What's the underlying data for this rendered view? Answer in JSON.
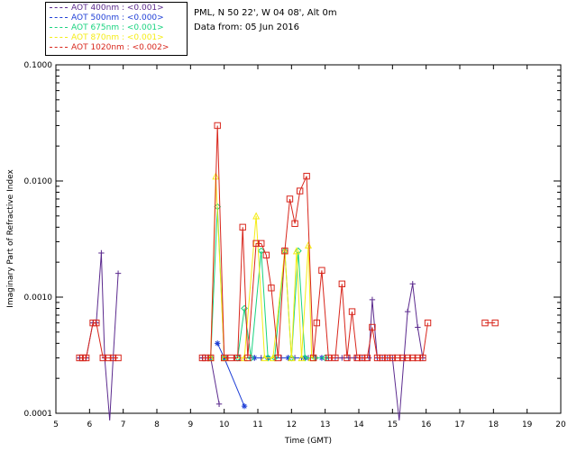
{
  "legend": [
    {
      "label": "AOT  400nm : <0.001>",
      "color": "#5b2a8e"
    },
    {
      "label": "AOT  500nm : <0.000>",
      "color": "#1f3fd6"
    },
    {
      "label": "AOT  675nm : <0.001>",
      "color": "#19d37f"
    },
    {
      "label": "AOT  870nm : <0.001>",
      "color": "#f5ec16"
    },
    {
      "label": "AOT 1020nm : <0.002>",
      "color": "#d8261c"
    }
  ],
  "info": {
    "site": "PML, N 50 22', W 04 08', Alt 0m",
    "date": "Data from: 05 Jun 2016"
  },
  "chart_data": {
    "type": "line",
    "ylabel": "Imaginary Part of Refractive Index",
    "xlabel": "Time (GMT)",
    "xlim": [
      5,
      20
    ],
    "ylim": [
      0.0001,
      0.1
    ],
    "yscale": "log",
    "xticks": [
      5,
      6,
      7,
      8,
      9,
      10,
      11,
      12,
      13,
      14,
      15,
      16,
      17,
      18,
      19,
      20
    ],
    "yticks": [
      {
        "value": 0.0001,
        "label": "0.0001"
      },
      {
        "value": 0.001,
        "label": "0.0010"
      },
      {
        "value": 0.01,
        "label": "0.0100"
      },
      {
        "value": 0.1,
        "label": "0.1000"
      }
    ],
    "series": [
      {
        "name": "AOT 400nm",
        "color": "#5b2a8e",
        "marker": "plus",
        "points": [
          [
            5.7,
            0.0003
          ],
          [
            5.8,
            0.0003
          ],
          [
            5.9,
            0.0003
          ],
          [
            6.1,
            0.0006
          ],
          [
            6.2,
            0.0006
          ],
          [
            6.35,
            0.0024
          ],
          [
            6.45,
            0.0003
          ],
          [
            6.6,
            8e-05
          ],
          [
            6.7,
            0.0003
          ],
          [
            6.85,
            0.0016
          ],
          [
            null,
            null
          ],
          [
            9.35,
            0.0003
          ],
          [
            9.45,
            0.0003
          ],
          [
            9.6,
            0.0003
          ],
          [
            9.85,
            0.00012
          ],
          [
            null,
            null
          ],
          [
            10.0,
            0.0003
          ],
          [
            10.1,
            0.0003
          ],
          [
            10.3,
            0.0003
          ],
          [
            10.45,
            0.0003
          ],
          [
            10.6,
            0.0003
          ],
          [
            10.9,
            0.0003
          ],
          [
            11.1,
            0.0003
          ],
          [
            11.3,
            0.0003
          ],
          [
            11.5,
            0.0003
          ],
          [
            11.7,
            0.0003
          ],
          [
            11.9,
            0.0003
          ],
          [
            12.1,
            0.0003
          ],
          [
            12.3,
            0.0003
          ],
          [
            12.5,
            0.0003
          ],
          [
            12.7,
            0.0003
          ],
          [
            12.9,
            0.0003
          ],
          [
            13.1,
            0.0003
          ],
          [
            13.3,
            0.0003
          ],
          [
            13.5,
            0.0003
          ],
          [
            13.7,
            0.0003
          ],
          [
            13.9,
            0.0003
          ],
          [
            14.1,
            0.0003
          ],
          [
            14.3,
            0.0003
          ],
          [
            14.4,
            0.00095
          ],
          [
            14.55,
            0.0003
          ],
          [
            14.7,
            0.0003
          ],
          [
            14.85,
            0.0003
          ],
          [
            15.0,
            0.0003
          ],
          [
            15.2,
            8e-05
          ],
          [
            15.45,
            0.00075
          ],
          [
            15.6,
            0.0013
          ],
          [
            15.75,
            0.00055
          ],
          [
            15.9,
            0.0003
          ]
        ]
      },
      {
        "name": "AOT 500nm",
        "color": "#1f3fd6",
        "marker": "star",
        "points": [
          [
            9.8,
            0.0004
          ],
          [
            10.0,
            0.0003
          ],
          [
            10.6,
            0.000115
          ],
          [
            null,
            null
          ],
          [
            10.9,
            0.0003
          ],
          [
            11.3,
            0.0003
          ],
          [
            11.9,
            0.0003
          ],
          [
            12.4,
            0.0003
          ],
          [
            12.9,
            0.0003
          ]
        ]
      },
      {
        "name": "AOT 675nm",
        "color": "#19d37f",
        "marker": "diamond",
        "points": [
          [
            9.6,
            0.0003
          ],
          [
            9.8,
            0.006
          ],
          [
            10.0,
            0.0003
          ],
          [
            10.4,
            0.0003
          ],
          [
            10.6,
            0.0008
          ],
          [
            10.8,
            0.0003
          ],
          [
            11.1,
            0.0025
          ],
          [
            11.3,
            0.0003
          ],
          [
            11.5,
            0.0003
          ],
          [
            11.8,
            0.0025
          ],
          [
            12.0,
            0.0003
          ],
          [
            12.2,
            0.0025
          ],
          [
            12.4,
            0.0003
          ],
          [
            12.7,
            0.0003
          ],
          [
            13.0,
            0.0003
          ]
        ]
      },
      {
        "name": "AOT 870nm",
        "color": "#f5ec16",
        "marker": "triangle",
        "points": [
          [
            9.6,
            0.0003
          ],
          [
            9.75,
            0.011
          ],
          [
            10.0,
            0.0003
          ],
          [
            10.6,
            0.0003
          ],
          [
            10.95,
            0.005
          ],
          [
            11.2,
            0.0003
          ],
          [
            11.45,
            0.0003
          ],
          [
            11.8,
            0.0025
          ],
          [
            12.0,
            0.0003
          ],
          [
            12.15,
            0.0025
          ],
          [
            12.3,
            0.0003
          ],
          [
            12.5,
            0.0028
          ],
          [
            12.6,
            0.0003
          ]
        ]
      },
      {
        "name": "AOT 1020nm",
        "color": "#d8261c",
        "marker": "square",
        "points": [
          [
            5.7,
            0.0003
          ],
          [
            5.8,
            0.0003
          ],
          [
            5.9,
            0.0003
          ],
          [
            6.1,
            0.0006
          ],
          [
            6.2,
            0.0006
          ],
          [
            6.4,
            0.0003
          ],
          [
            6.55,
            0.0003
          ],
          [
            6.7,
            0.0003
          ],
          [
            6.85,
            0.0003
          ],
          [
            null,
            null
          ],
          [
            9.35,
            0.0003
          ],
          [
            9.45,
            0.0003
          ],
          [
            9.6,
            0.0003
          ],
          [
            9.8,
            0.03
          ],
          [
            10.0,
            0.0003
          ],
          [
            10.2,
            0.0003
          ],
          [
            10.4,
            0.0003
          ],
          [
            10.55,
            0.004
          ],
          [
            10.7,
            0.0003
          ],
          [
            10.95,
            0.0029
          ],
          [
            11.1,
            0.0029
          ],
          [
            11.25,
            0.0023
          ],
          [
            11.4,
            0.0012
          ],
          [
            11.6,
            0.0003
          ],
          [
            11.8,
            0.0025
          ],
          [
            11.95,
            0.007
          ],
          [
            12.1,
            0.0043
          ],
          [
            12.25,
            0.0082
          ],
          [
            12.45,
            0.011
          ],
          [
            12.65,
            0.0003
          ],
          [
            12.75,
            0.0006
          ],
          [
            12.9,
            0.0017
          ],
          [
            13.1,
            0.0003
          ],
          [
            13.3,
            0.0003
          ],
          [
            13.5,
            0.0013
          ],
          [
            13.65,
            0.0003
          ],
          [
            13.8,
            0.00075
          ],
          [
            13.95,
            0.0003
          ],
          [
            14.1,
            0.0003
          ],
          [
            14.25,
            0.0003
          ],
          [
            14.4,
            0.00055
          ],
          [
            14.55,
            0.0003
          ],
          [
            14.7,
            0.0003
          ],
          [
            14.85,
            0.0003
          ],
          [
            15.0,
            0.0003
          ],
          [
            15.15,
            0.0003
          ],
          [
            15.3,
            0.0003
          ],
          [
            15.45,
            0.0003
          ],
          [
            15.6,
            0.0003
          ],
          [
            15.75,
            0.0003
          ],
          [
            15.9,
            0.0003
          ],
          [
            16.05,
            0.0006
          ],
          [
            null,
            null
          ],
          [
            17.75,
            0.0006
          ],
          [
            18.05,
            0.0006
          ]
        ]
      }
    ]
  }
}
